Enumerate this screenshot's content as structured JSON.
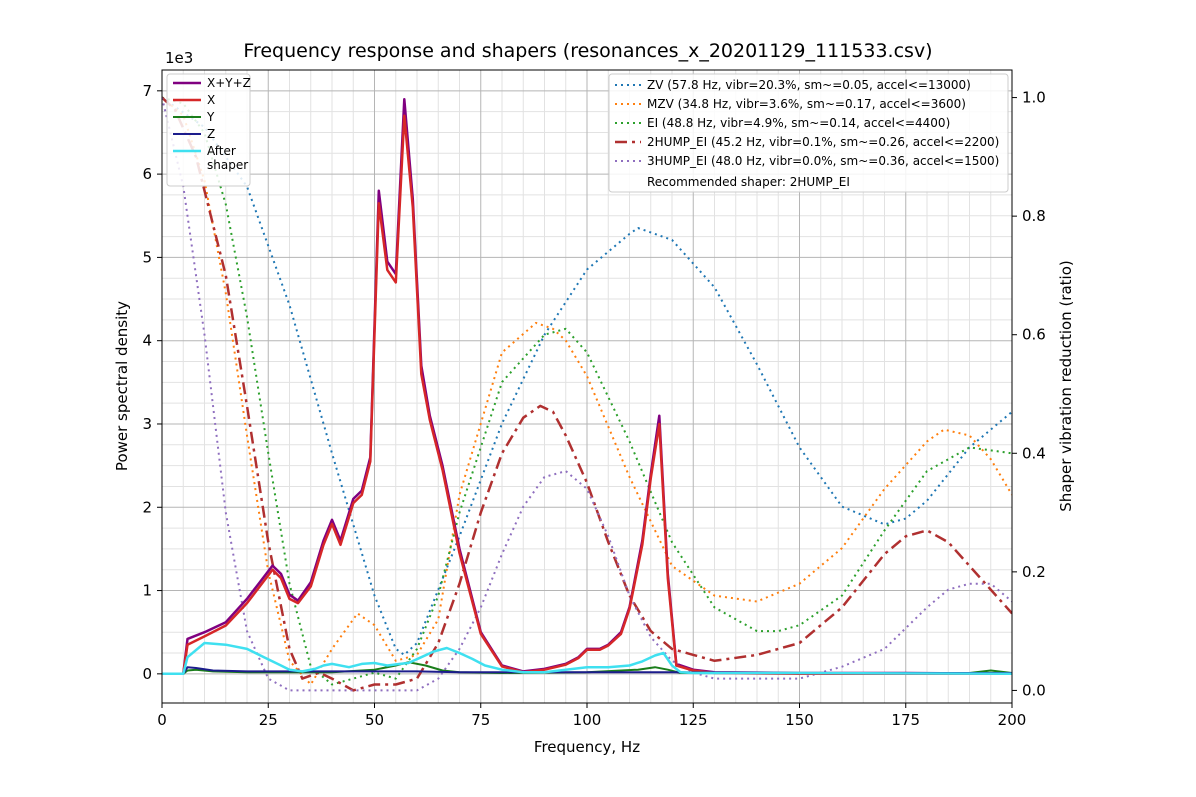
{
  "chart_data": {
    "type": "line",
    "title": "Frequency response and shapers (resonances_x_20201129_111533.csv)",
    "xlabel": "Frequency, Hz",
    "ylabel": "Power spectral density",
    "ylabel_right": "Shaper vibration reduction (ratio)",
    "y_exponent": "1e3",
    "xlim": [
      0,
      200
    ],
    "ylim": [
      -0.35,
      7.25
    ],
    "ylim_right": [
      -0.0212,
      1.0465
    ],
    "xticks": [
      "0",
      "25",
      "50",
      "75",
      "100",
      "125",
      "150",
      "175",
      "200"
    ],
    "yticks": [
      "0",
      "1",
      "2",
      "3",
      "4",
      "5",
      "6",
      "7"
    ],
    "yticks_right": [
      "0.0",
      "0.2",
      "0.4",
      "0.6",
      "0.8",
      "1.0"
    ],
    "grid": true,
    "legend_left_position": "top-left",
    "legend_right_position": "top-right",
    "recommended": "Recommended shaper: 2HUMP_EI",
    "psd_series": [
      {
        "name": "X+Y+Z",
        "color": "#800080",
        "width": 2.5,
        "dash": "",
        "x": [
          0,
          5,
          6,
          10,
          15,
          20,
          23,
          26,
          28,
          30,
          32,
          35,
          38,
          40,
          42,
          45,
          47,
          49,
          51,
          53,
          55,
          57,
          59,
          61,
          63,
          66,
          70,
          75,
          80,
          85,
          90,
          95,
          98,
          100,
          103,
          105,
          108,
          110,
          113,
          115,
          117,
          119,
          121,
          125,
          130,
          150,
          175,
          200
        ],
        "y": [
          0,
          0,
          0.42,
          0.5,
          0.62,
          0.9,
          1.1,
          1.3,
          1.2,
          0.95,
          0.88,
          1.1,
          1.6,
          1.85,
          1.6,
          2.1,
          2.2,
          2.6,
          5.8,
          4.95,
          4.8,
          6.9,
          5.7,
          3.7,
          3.1,
          2.5,
          1.5,
          0.5,
          0.1,
          0.03,
          0.06,
          0.12,
          0.2,
          0.3,
          0.3,
          0.35,
          0.5,
          0.8,
          1.6,
          2.4,
          3.1,
          1.2,
          0.12,
          0.05,
          0.02,
          0.01,
          0.01,
          0
        ]
      },
      {
        "name": "X",
        "color": "#d62728",
        "width": 2.5,
        "dash": "",
        "x": [
          0,
          5,
          6,
          10,
          15,
          20,
          23,
          26,
          28,
          30,
          32,
          35,
          38,
          40,
          42,
          45,
          47,
          49,
          51,
          53,
          55,
          57,
          59,
          61,
          63,
          66,
          70,
          75,
          80,
          85,
          90,
          95,
          98,
          100,
          103,
          105,
          108,
          110,
          113,
          115,
          117,
          119,
          121,
          125,
          130,
          150,
          175,
          200
        ],
        "y": [
          0,
          0,
          0.35,
          0.45,
          0.58,
          0.85,
          1.05,
          1.25,
          1.15,
          0.9,
          0.85,
          1.05,
          1.55,
          1.8,
          1.55,
          2.05,
          2.15,
          2.55,
          5.65,
          4.85,
          4.7,
          6.7,
          5.6,
          3.6,
          3.05,
          2.45,
          1.45,
          0.48,
          0.09,
          0.02,
          0.05,
          0.11,
          0.19,
          0.29,
          0.29,
          0.34,
          0.48,
          0.78,
          1.55,
          2.35,
          3.0,
          1.15,
          0.1,
          0.04,
          0.01,
          0,
          0,
          0
        ]
      },
      {
        "name": "Y",
        "color": "#1a7d1a",
        "width": 2,
        "dash": "",
        "x": [
          0,
          5,
          6,
          8,
          12,
          20,
          30,
          40,
          50,
          55,
          58,
          62,
          66,
          70,
          80,
          100,
          112,
          116,
          119,
          122,
          130,
          170,
          190,
          195,
          200
        ],
        "y": [
          0,
          0,
          0.04,
          0.05,
          0.03,
          0.02,
          0.02,
          0.02,
          0.05,
          0.1,
          0.14,
          0.1,
          0.04,
          0.02,
          0.01,
          0.02,
          0.05,
          0.08,
          0.05,
          0.01,
          0.01,
          0.01,
          0.01,
          0.04,
          0.01
        ]
      },
      {
        "name": "Z",
        "color": "#1c1c8c",
        "width": 2,
        "dash": "",
        "x": [
          0,
          5,
          6,
          8,
          12,
          20,
          30,
          40,
          50,
          60,
          70,
          80,
          100,
          120,
          150,
          200
        ],
        "y": [
          0,
          0,
          0.08,
          0.07,
          0.04,
          0.03,
          0.03,
          0.03,
          0.03,
          0.03,
          0.02,
          0.02,
          0.02,
          0.02,
          0.01,
          0.01
        ]
      },
      {
        "name": "After\nshaper",
        "color": "#3fe0f0",
        "width": 2.5,
        "dash": "",
        "x": [
          0,
          5,
          6,
          10,
          15,
          20,
          24,
          26,
          28,
          30,
          33,
          36,
          38,
          40,
          44,
          47,
          50,
          53,
          56,
          58,
          61,
          64,
          67,
          70,
          73,
          76,
          80,
          85,
          90,
          95,
          100,
          105,
          110,
          113,
          116,
          118,
          120,
          122,
          125,
          130,
          150,
          200
        ],
        "y": [
          0,
          0,
          0.2,
          0.37,
          0.35,
          0.3,
          0.2,
          0.15,
          0.1,
          0.05,
          0.03,
          0.06,
          0.1,
          0.12,
          0.08,
          0.12,
          0.13,
          0.1,
          0.12,
          0.13,
          0.2,
          0.27,
          0.31,
          0.25,
          0.18,
          0.1,
          0.05,
          0.02,
          0.02,
          0.05,
          0.08,
          0.08,
          0.1,
          0.15,
          0.22,
          0.25,
          0.1,
          0.02,
          0.01,
          0.01,
          0.01,
          0
        ]
      }
    ],
    "shaper_series": [
      {
        "name": "ZV (57.8 Hz, vibr=20.3%, sm~=0.05, accel<=13000)",
        "color": "#1f77b4",
        "width": 2,
        "dash": "2,4",
        "x": [
          0,
          10,
          20,
          30,
          40,
          50,
          55,
          57,
          60,
          70,
          80,
          90,
          100,
          110,
          112,
          120,
          130,
          140,
          150,
          160,
          170,
          175,
          180,
          190,
          200
        ],
        "y": [
          1.0,
          0.95,
          0.85,
          0.65,
          0.4,
          0.16,
          0.07,
          0.06,
          0.08,
          0.26,
          0.45,
          0.6,
          0.71,
          0.77,
          0.78,
          0.76,
          0.68,
          0.55,
          0.41,
          0.31,
          0.28,
          0.29,
          0.32,
          0.41,
          0.47
        ]
      },
      {
        "name": "MZV (34.8 Hz, vibr=3.6%, sm~=0.17, accel<=3600)",
        "color": "#ff7f0e",
        "width": 2,
        "dash": "2,4",
        "x": [
          0,
          5,
          10,
          15,
          20,
          25,
          30,
          35,
          40,
          46,
          50,
          55,
          60,
          65,
          70,
          80,
          88,
          92,
          95,
          100,
          110,
          120,
          130,
          140,
          150,
          160,
          170,
          180,
          184,
          190,
          195,
          200
        ],
        "y": [
          1.0,
          0.97,
          0.86,
          0.67,
          0.43,
          0.2,
          0.05,
          0.01,
          0.07,
          0.13,
          0.11,
          0.05,
          0.06,
          0.12,
          0.33,
          0.57,
          0.62,
          0.61,
          0.59,
          0.53,
          0.36,
          0.21,
          0.16,
          0.15,
          0.18,
          0.24,
          0.34,
          0.42,
          0.44,
          0.43,
          0.39,
          0.33
        ]
      },
      {
        "name": "EI (48.8 Hz, vibr=4.9%, sm~=0.14, accel<=4400)",
        "color": "#2ca02c",
        "width": 2,
        "dash": "2,4",
        "x": [
          0,
          5,
          10,
          15,
          20,
          25,
          30,
          35,
          40,
          45,
          50,
          55,
          60,
          65,
          70,
          80,
          90,
          95,
          100,
          110,
          120,
          130,
          140,
          145,
          150,
          160,
          170,
          180,
          190,
          200
        ],
        "y": [
          1.0,
          0.99,
          0.94,
          0.82,
          0.63,
          0.4,
          0.18,
          0.04,
          0.01,
          0.02,
          0.03,
          0.02,
          0.07,
          0.16,
          0.3,
          0.52,
          0.6,
          0.61,
          0.57,
          0.42,
          0.25,
          0.14,
          0.1,
          0.1,
          0.11,
          0.16,
          0.27,
          0.37,
          0.41,
          0.4
        ]
      },
      {
        "name": "2HUMP_EI (45.2 Hz, vibr=0.1%, sm~=0.26, accel<=2200)",
        "color": "#b03030",
        "width": 2.5,
        "dash": "12,5,3,5",
        "x": [
          0,
          3,
          8,
          15,
          20,
          25,
          30,
          33,
          37,
          40,
          45,
          50,
          55,
          60,
          65,
          70,
          75,
          80,
          85,
          89,
          92,
          95,
          100,
          105,
          110,
          115,
          120,
          125,
          130,
          140,
          150,
          160,
          170,
          175,
          180,
          185,
          190,
          200
        ],
        "y": [
          1.0,
          0.98,
          0.9,
          0.7,
          0.48,
          0.25,
          0.07,
          0.02,
          0.03,
          0.02,
          0.0,
          0.01,
          0.01,
          0.02,
          0.08,
          0.18,
          0.3,
          0.4,
          0.46,
          0.48,
          0.47,
          0.43,
          0.35,
          0.25,
          0.16,
          0.1,
          0.07,
          0.06,
          0.05,
          0.06,
          0.08,
          0.14,
          0.23,
          0.26,
          0.27,
          0.25,
          0.21,
          0.13
        ]
      },
      {
        "name": "3HUMP_EI (48.0 Hz, vibr=0.0%, sm~=0.36, accel<=1500)",
        "color": "#8f6fbf",
        "width": 2,
        "dash": "2,4",
        "x": [
          0,
          5,
          10,
          15,
          20,
          25,
          30,
          40,
          50,
          60,
          65,
          70,
          75,
          80,
          85,
          90,
          95,
          100,
          105,
          110,
          115,
          120,
          125,
          130,
          140,
          150,
          160,
          170,
          180,
          185,
          190,
          195,
          200
        ],
        "y": [
          1.0,
          0.85,
          0.6,
          0.3,
          0.1,
          0.02,
          0.0,
          0.0,
          0.0,
          0.0,
          0.02,
          0.07,
          0.14,
          0.23,
          0.31,
          0.36,
          0.37,
          0.34,
          0.26,
          0.16,
          0.09,
          0.05,
          0.03,
          0.02,
          0.02,
          0.02,
          0.04,
          0.07,
          0.14,
          0.17,
          0.18,
          0.18,
          0.15
        ]
      }
    ]
  }
}
